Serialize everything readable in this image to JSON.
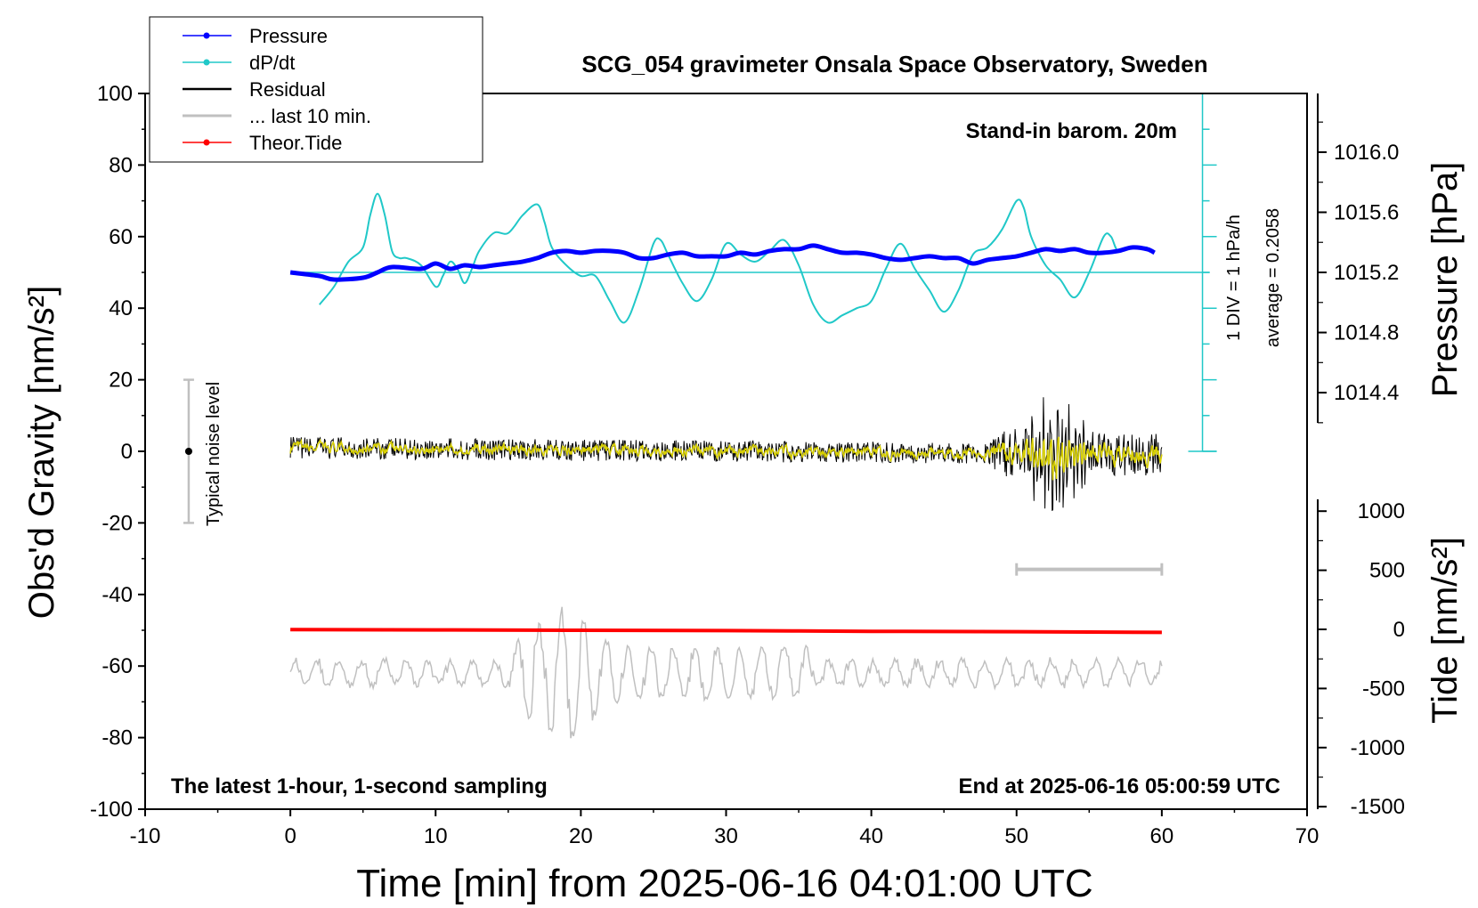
{
  "chart_data": {
    "type": "line",
    "title": "SCG_054 gravimeter Onsala Space Observatory, Sweden",
    "xlabel": "Time [min] from 2025-06-16 04:01:00 UTC",
    "ylabel": "Obs'd Gravity [nm/s²]",
    "ylabel_pressure": "Pressure [hPa]",
    "ylabel_tide": "Tide [nm/s²]",
    "xlim": [
      -10,
      70
    ],
    "ylim": [
      -100,
      100
    ],
    "x_ticks": [
      -10,
      0,
      10,
      20,
      30,
      40,
      50,
      60,
      70
    ],
    "y_ticks": [
      -100,
      -80,
      -60,
      -40,
      -20,
      0,
      20,
      40,
      60,
      80,
      100
    ],
    "pressure_ticks": [
      "1016.0",
      "1015.6",
      "1015.2",
      "1014.8",
      "1014.4"
    ],
    "pressure_tick_values": [
      1016.0,
      1015.6,
      1015.2,
      1014.8,
      1014.4
    ],
    "tide_ticks": [
      "1000",
      "500",
      "0",
      "-500",
      "-1000",
      "-1500"
    ],
    "tide_tick_values": [
      1000,
      500,
      0,
      -500,
      -1000,
      -1500
    ],
    "annotations": {
      "barometer": "Stand-in barom. 20m",
      "div": "1 DIV = 1 hPa/h",
      "average": "average = 0.2058",
      "noise": "Typical noise level",
      "latest": "The latest 1-hour, 1-second sampling",
      "end": "End at 2025-06-16 05:00:59 UTC"
    },
    "legend": {
      "position": "top-left",
      "entries": [
        {
          "label": "Pressure",
          "color": "#0000ff",
          "marker": true
        },
        {
          "label": "dP/dt",
          "color": "#20c8c8",
          "marker": true
        },
        {
          "label": "Residual",
          "color": "#000000",
          "marker": false
        },
        {
          "label": "... last 10 min.",
          "color": "#c0c0c0",
          "marker": false
        },
        {
          "label": "Theor.Tide",
          "color": "#ff0000",
          "marker": true
        }
      ]
    },
    "series": [
      {
        "name": "Pressure",
        "color": "#0000ff",
        "x": [
          0,
          2,
          3,
          5,
          6,
          7,
          9,
          10,
          11,
          12,
          13,
          14,
          15,
          16,
          17,
          18,
          19,
          20,
          21,
          22,
          23,
          24,
          25,
          26,
          27,
          28,
          29,
          30,
          31,
          32,
          33,
          34,
          35,
          36,
          37,
          38,
          39,
          40,
          41,
          42,
          43,
          44,
          45,
          46,
          47,
          48,
          49,
          50,
          51,
          52,
          53,
          54,
          55,
          56,
          57,
          58,
          59,
          59.5
        ],
        "y": [
          50,
          49,
          48,
          48.5,
          50,
          51.5,
          51,
          52.5,
          51,
          52,
          51.5,
          52,
          52.5,
          53,
          54,
          55.5,
          56,
          55.5,
          56,
          56,
          55.5,
          54,
          54,
          55,
          55.5,
          54.5,
          54.5,
          54.5,
          55.5,
          55,
          56,
          56.5,
          56.5,
          57.5,
          56.5,
          55.5,
          55.5,
          55,
          54,
          53.5,
          54,
          54.5,
          54,
          54,
          52.5,
          53.5,
          54,
          54.5,
          55.5,
          56.5,
          56,
          56.5,
          55.5,
          55.5,
          56,
          57,
          56.5,
          55.5
        ]
      },
      {
        "name": "dP/dt",
        "color": "#20c8c8",
        "x": [
          2,
          3,
          4,
          5,
          5.5,
          6,
          6.5,
          7,
          7.5,
          8,
          9,
          10,
          10.5,
          11,
          11.5,
          12,
          12.5,
          13,
          14,
          15,
          16,
          17,
          17.5,
          18,
          19,
          20,
          21,
          22,
          23,
          24,
          25,
          25.5,
          26,
          27,
          28,
          29,
          30,
          31,
          32,
          33,
          34,
          35,
          36,
          37,
          38,
          39,
          40,
          41,
          42,
          43,
          44,
          45,
          46,
          47,
          48,
          49,
          50,
          50.5,
          51,
          52,
          53,
          54,
          55,
          56,
          56.5,
          57,
          58,
          59
        ],
        "y": [
          41,
          46,
          53,
          57,
          66,
          72,
          66,
          56,
          54,
          54,
          52,
          46,
          49,
          53,
          51,
          47,
          51,
          56,
          61,
          61,
          66,
          69,
          64,
          57,
          52,
          49,
          49,
          42,
          36,
          45,
          58,
          59,
          55,
          47,
          42,
          48,
          58,
          55,
          53,
          56,
          59,
          52,
          41,
          36,
          38,
          40,
          42,
          51,
          58,
          51,
          45,
          39,
          45,
          55,
          57,
          62,
          70,
          68,
          60,
          52,
          48,
          43,
          50,
          60,
          60,
          56,
          57,
          57
        ]
      },
      {
        "name": "Residual",
        "color": "#000000",
        "x": [
          0,
          60
        ],
        "y": [
          1,
          -1
        ]
      },
      {
        "name": "... last 10 min.",
        "color": "#c0c0c0",
        "x": [
          0,
          60
        ],
        "y": [
          -62,
          -62
        ]
      },
      {
        "name": "Theor.Tide",
        "color": "#ff0000",
        "x": [
          0,
          10,
          20,
          30,
          35,
          40,
          50,
          55,
          60
        ],
        "y": [
          -49.8,
          -49.9,
          -50,
          -50.1,
          -50.2,
          -50.3,
          -50.4,
          -50.5,
          -50.6
        ]
      }
    ],
    "noise_bar": {
      "x": -7,
      "ymin": -20,
      "ymax": 20
    },
    "range_bar": {
      "xmin": 50,
      "xmax": 60,
      "y": -33
    }
  },
  "colors": {
    "pressure": "#0000ff",
    "dpdt": "#20c8c8",
    "residual": "#000000",
    "residual_filtered": "#d8d000",
    "last10": "#c0c0c0",
    "tide": "#ff0000",
    "noise": "#c0c0c0"
  }
}
